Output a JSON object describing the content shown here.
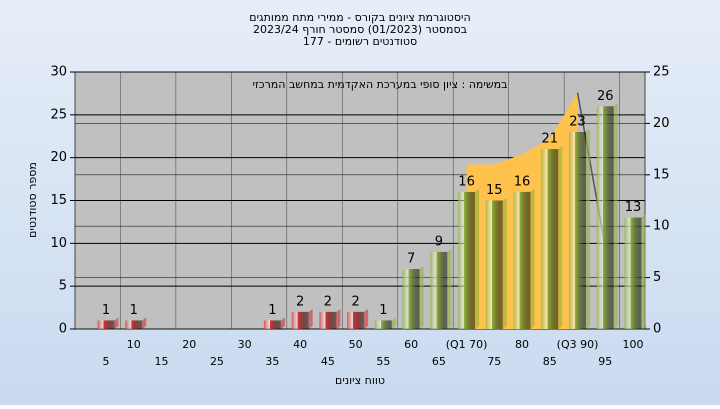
{
  "chart_data": {
    "type": "bar",
    "title": "היסטוגרמת ציונים בקורס - ממירי מתח ממותגים",
    "subtitle": "בסמסטר (01/2023) סמסטר חורף 2023/24",
    "subtitle2": "סטודנטים רשומים - 177",
    "annotation": "במשימה : ציון סופי במערכת האקדמית במחשב המרכזי",
    "ylabel": "מספר סטודנטים",
    "xlabel": "טווח ציונים",
    "categories": [
      "5",
      "10",
      "15",
      "20",
      "25",
      "30",
      "35",
      "40",
      "45",
      "50",
      "55",
      "60",
      "65",
      "(Q1 70)",
      "75",
      "80",
      "85",
      "(Q3 90)",
      "95",
      "100"
    ],
    "ylim": [
      0,
      30
    ],
    "yticks": [
      0,
      5,
      10,
      15,
      20,
      25,
      30
    ],
    "y2lim": [
      0,
      25
    ],
    "y2ticks": [
      0,
      5,
      10,
      15,
      20,
      25
    ],
    "grid": true,
    "series": [
      {
        "type": "bar",
        "values": [
          1,
          1,
          0,
          0,
          0,
          0,
          1,
          2,
          2,
          2,
          1,
          7,
          9,
          16,
          15,
          16,
          21,
          23,
          26,
          13
        ],
        "colors": [
          "#d93030",
          "#d93030",
          "#d93030",
          "#d93030",
          "#d93030",
          "#d93030",
          "#d93030",
          "#d93030",
          "#d93030",
          "#d93030",
          "#8fb33c",
          "#8fb33c",
          "#8fb33c",
          "#8fb33c",
          "#8fb33c",
          "#8fb33c",
          "#8fb33c",
          "#8fb33c",
          "#8fb33c",
          "#8fb33c"
        ]
      },
      {
        "type": "area",
        "axis": "y2",
        "color": "#ffc24d",
        "values": [
          null,
          null,
          null,
          null,
          null,
          null,
          null,
          null,
          null,
          null,
          null,
          null,
          null,
          16,
          16,
          17,
          18.5,
          23,
          null,
          null
        ]
      },
      {
        "type": "line",
        "axis": "y2",
        "color": "#555555",
        "values": [
          null,
          null,
          null,
          null,
          null,
          null,
          null,
          null,
          null,
          null,
          null,
          null,
          null,
          null,
          null,
          null,
          null,
          23,
          8,
          null
        ]
      }
    ]
  }
}
